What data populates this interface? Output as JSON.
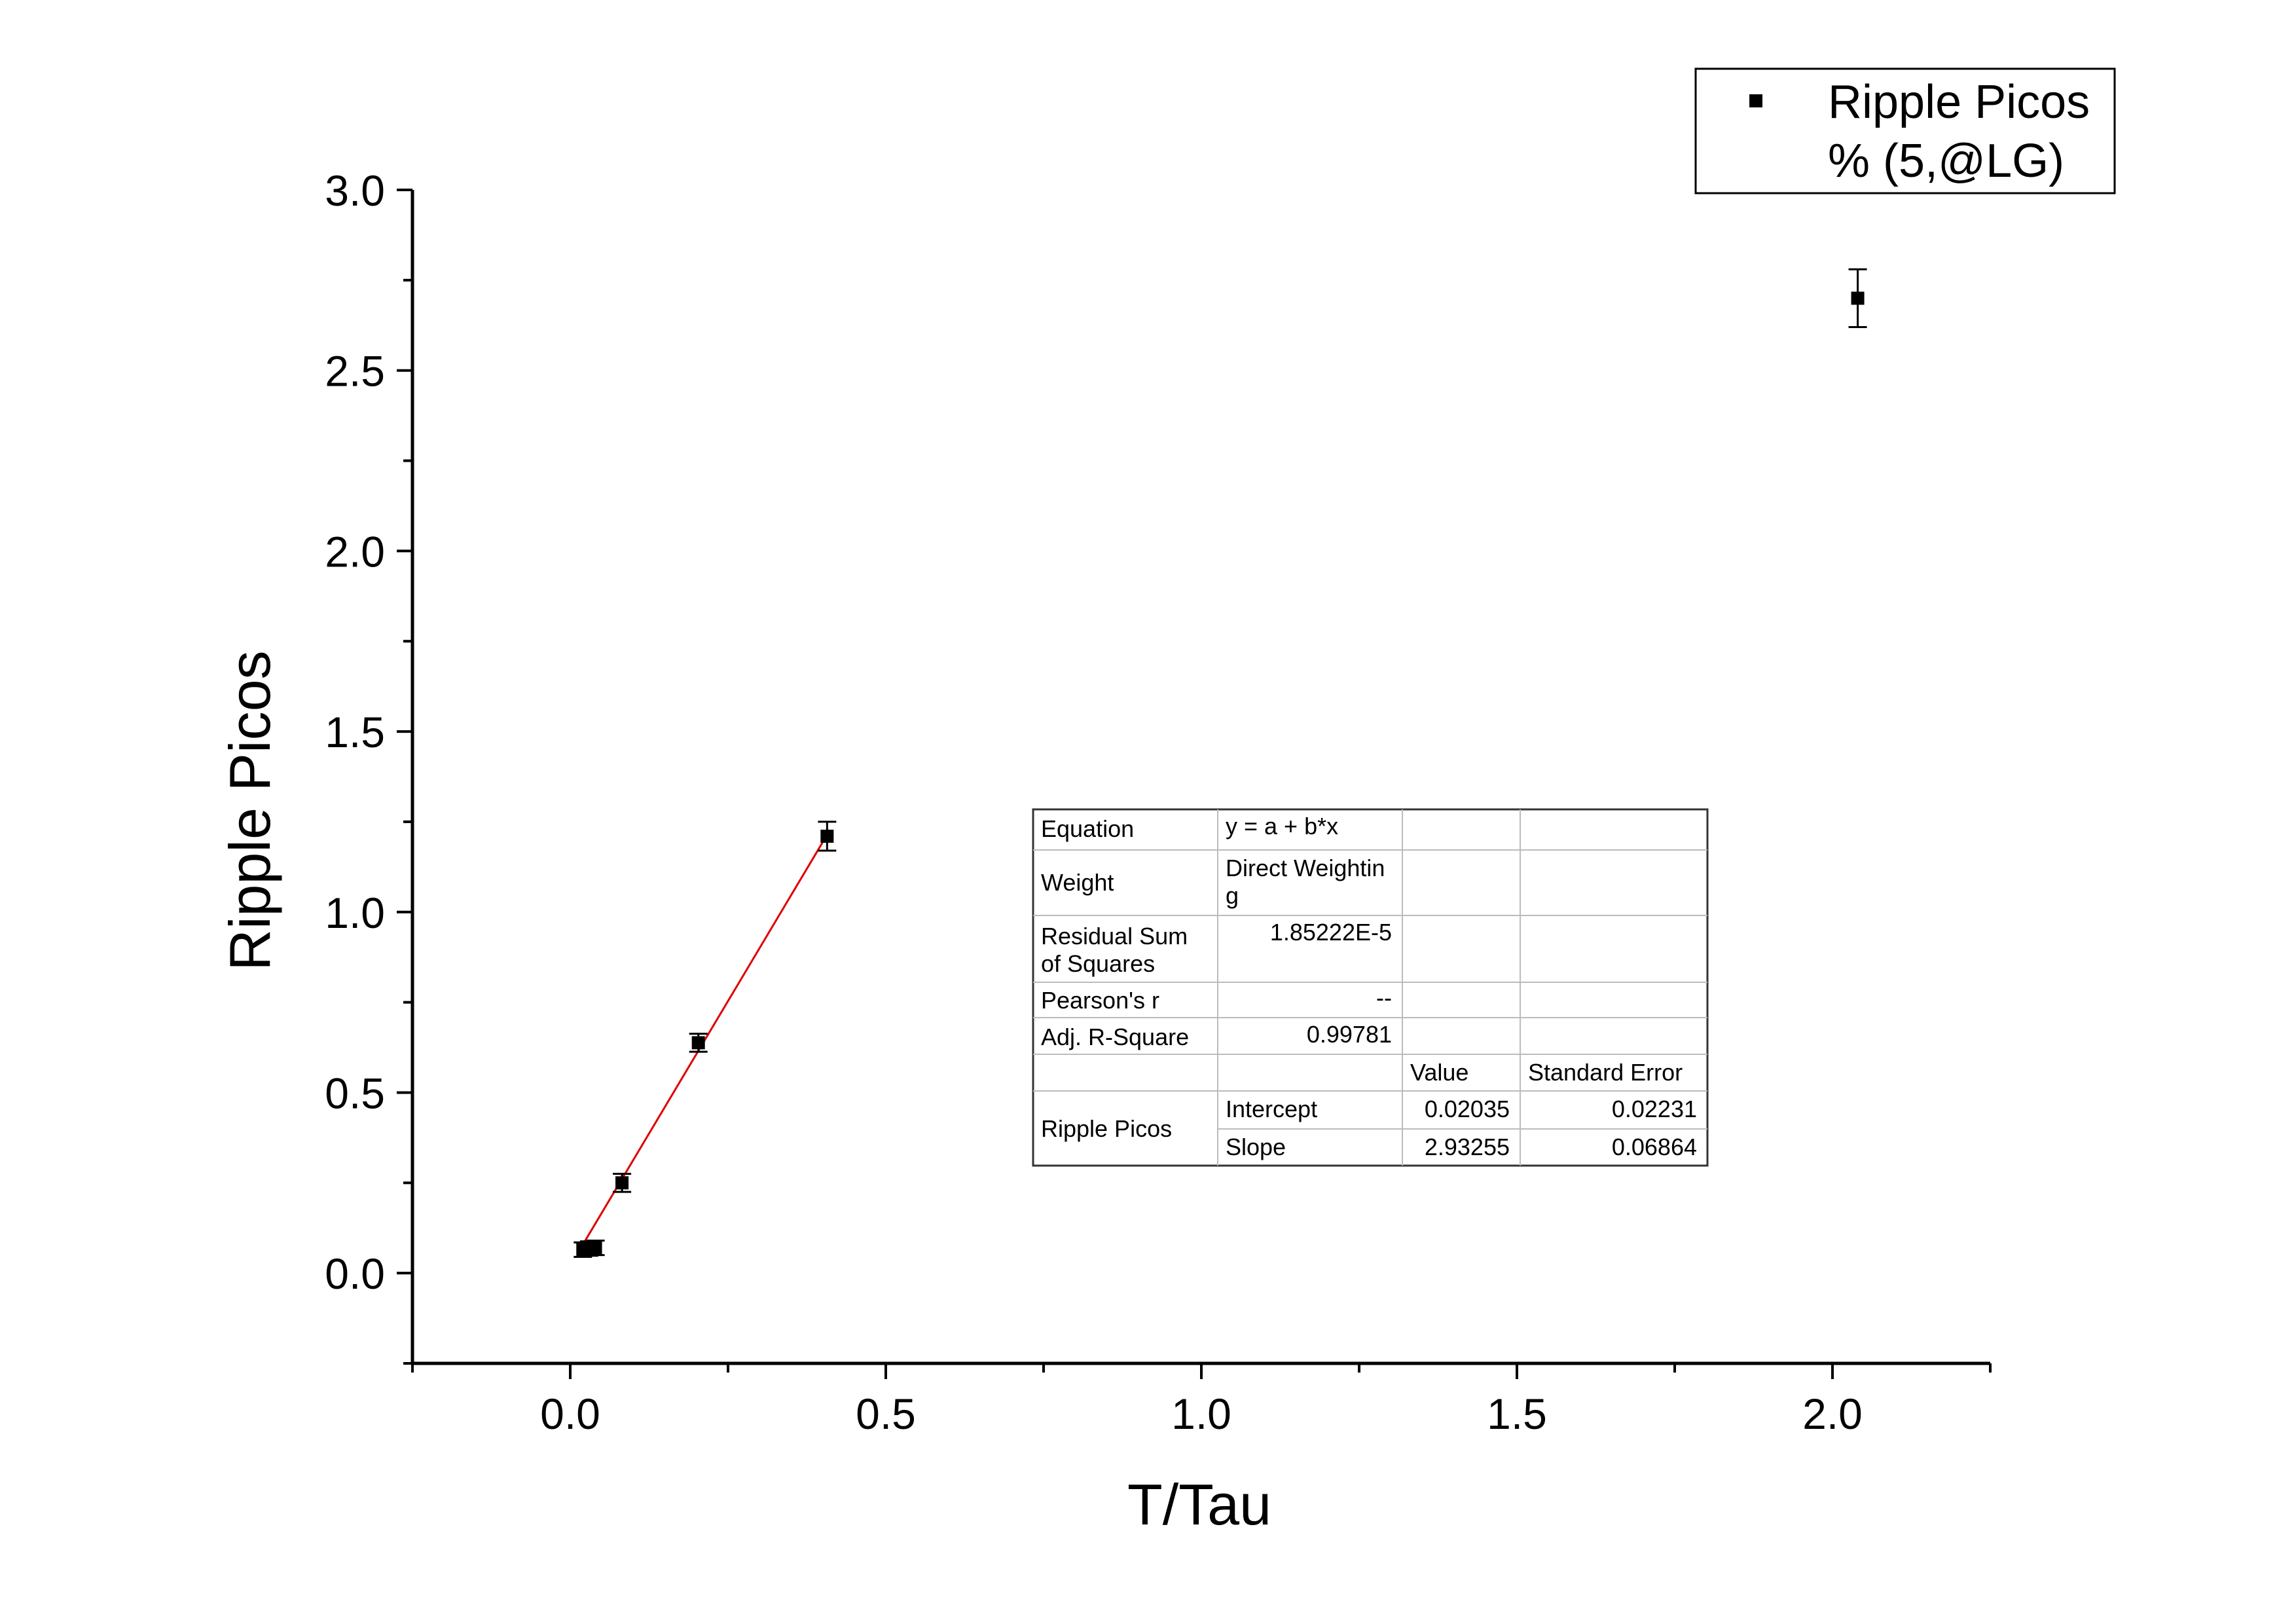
{
  "chart_data": {
    "type": "scatter",
    "xlabel": "T/Tau",
    "ylabel": "Ripple Picos",
    "xlim": [
      -0.25,
      2.25
    ],
    "ylim": [
      -0.25,
      3.0
    ],
    "x_ticks": [
      "0.0",
      "0.5",
      "1.0",
      "1.5",
      "2.0"
    ],
    "y_ticks": [
      "0.0",
      "0.5",
      "1.0",
      "1.5",
      "2.0",
      "2.5",
      "3.0"
    ],
    "grid": false,
    "legend_position": "top-right",
    "legend": [
      "Ripple Picos",
      "% (5,@LG)"
    ],
    "series": [
      {
        "marker": "square",
        "color": "#000000",
        "points": [
          {
            "x": 0.02,
            "y": 0.065,
            "yerr": 0.02
          },
          {
            "x": 0.03,
            "y": 0.068,
            "yerr": 0.02
          },
          {
            "x": 0.04,
            "y": 0.07,
            "yerr": 0.02
          },
          {
            "x": 0.082,
            "y": 0.25,
            "yerr": 0.025
          },
          {
            "x": 0.203,
            "y": 0.638,
            "yerr": 0.025
          },
          {
            "x": 0.407,
            "y": 1.21,
            "yerr": 0.04
          },
          {
            "x": 2.04,
            "y": 2.7,
            "yerr": 0.08
          }
        ]
      }
    ],
    "fit_line": {
      "color": "#e00000",
      "intercept": 0.02035,
      "slope": 2.93255,
      "x_range": [
        0.02,
        0.407
      ]
    },
    "fit_table": {
      "rows": [
        [
          "Equation",
          "y = a + b*x",
          "",
          ""
        ],
        [
          "Weight",
          "Direct Weighting",
          "",
          ""
        ],
        [
          "Residual Sum of Squares",
          "1.85222E-5",
          "",
          ""
        ],
        [
          "Pearson's r",
          "--",
          "",
          ""
        ],
        [
          "Adj. R-Square",
          "0.99781",
          "",
          ""
        ],
        [
          "",
          "",
          "Value",
          "Standard Error"
        ],
        [
          "Ripple Picos",
          "Intercept",
          "0.02035",
          "0.02231"
        ],
        [
          "",
          "Slope",
          "2.93255",
          "0.06864"
        ]
      ]
    }
  }
}
